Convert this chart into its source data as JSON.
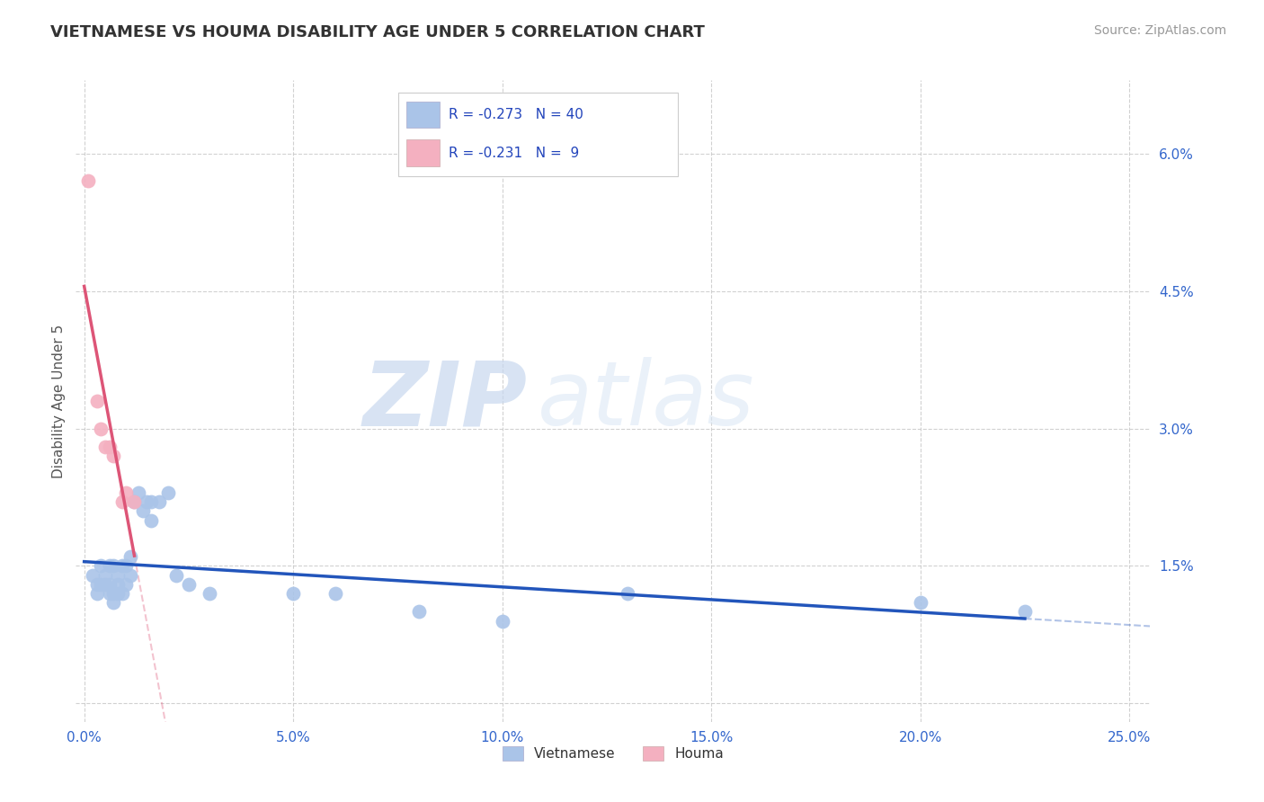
{
  "title": "VIETNAMESE VS HOUMA DISABILITY AGE UNDER 5 CORRELATION CHART",
  "source_text": "Source: ZipAtlas.com",
  "ylabel": "Disability Age Under 5",
  "xlabel": "",
  "xlim": [
    -0.002,
    0.255
  ],
  "ylim": [
    -0.002,
    0.068
  ],
  "xticks": [
    0.0,
    0.05,
    0.1,
    0.15,
    0.2,
    0.25
  ],
  "xtick_labels": [
    "0.0%",
    "5.0%",
    "10.0%",
    "15.0%",
    "20.0%",
    "25.0%"
  ],
  "yticks": [
    0.0,
    0.015,
    0.03,
    0.045,
    0.06
  ],
  "ytick_labels": [
    "",
    "1.5%",
    "3.0%",
    "4.5%",
    "6.0%"
  ],
  "background_color": "#ffffff",
  "plot_bg_color": "#ffffff",
  "grid_color": "#cccccc",
  "watermark_zip": "ZIP",
  "watermark_atlas": "atlas",
  "legend_R_viet": "-0.273",
  "legend_N_viet": "40",
  "legend_R_houma": "-0.231",
  "legend_N_houma": "9",
  "vietnamese_color": "#aac4e8",
  "houma_color": "#f4b0c0",
  "vietnamese_line_color": "#2255bb",
  "houma_line_color": "#dd5577",
  "vietnamese_scatter": [
    [
      0.002,
      0.014
    ],
    [
      0.003,
      0.013
    ],
    [
      0.003,
      0.012
    ],
    [
      0.004,
      0.015
    ],
    [
      0.004,
      0.013
    ],
    [
      0.005,
      0.014
    ],
    [
      0.005,
      0.013
    ],
    [
      0.006,
      0.015
    ],
    [
      0.006,
      0.013
    ],
    [
      0.006,
      0.012
    ],
    [
      0.007,
      0.015
    ],
    [
      0.007,
      0.012
    ],
    [
      0.007,
      0.011
    ],
    [
      0.008,
      0.014
    ],
    [
      0.008,
      0.013
    ],
    [
      0.008,
      0.012
    ],
    [
      0.009,
      0.015
    ],
    [
      0.009,
      0.012
    ],
    [
      0.01,
      0.015
    ],
    [
      0.01,
      0.013
    ],
    [
      0.011,
      0.016
    ],
    [
      0.011,
      0.014
    ],
    [
      0.012,
      0.022
    ],
    [
      0.013,
      0.023
    ],
    [
      0.014,
      0.021
    ],
    [
      0.015,
      0.022
    ],
    [
      0.016,
      0.022
    ],
    [
      0.016,
      0.02
    ],
    [
      0.018,
      0.022
    ],
    [
      0.02,
      0.023
    ],
    [
      0.022,
      0.014
    ],
    [
      0.025,
      0.013
    ],
    [
      0.03,
      0.012
    ],
    [
      0.05,
      0.012
    ],
    [
      0.06,
      0.012
    ],
    [
      0.08,
      0.01
    ],
    [
      0.1,
      0.009
    ],
    [
      0.13,
      0.012
    ],
    [
      0.2,
      0.011
    ],
    [
      0.225,
      0.01
    ]
  ],
  "houma_scatter": [
    [
      0.001,
      0.057
    ],
    [
      0.003,
      0.033
    ],
    [
      0.004,
      0.03
    ],
    [
      0.005,
      0.028
    ],
    [
      0.006,
      0.028
    ],
    [
      0.007,
      0.027
    ],
    [
      0.009,
      0.022
    ],
    [
      0.01,
      0.023
    ],
    [
      0.012,
      0.022
    ]
  ],
  "title_fontsize": 13,
  "axis_label_fontsize": 11,
  "tick_fontsize": 11,
  "source_fontsize": 10
}
